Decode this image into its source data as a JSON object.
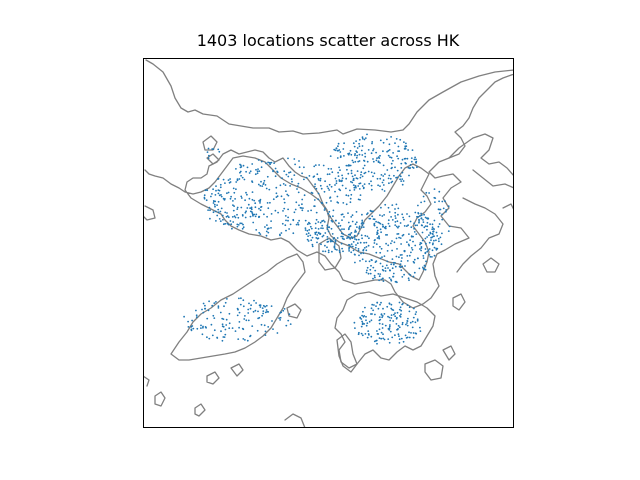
{
  "chart": {
    "title": "1403 locations scatter across HK",
    "point_color": "#1f77b4",
    "coastline_color": "#808080",
    "frame_color": "#000000",
    "background_color": "#ffffff"
  },
  "chart_data": {
    "type": "scatter",
    "title": "1403 locations scatter across HK",
    "point_count": 1403,
    "region": "Hong Kong",
    "xlabel": "",
    "ylabel": "",
    "legend": "none",
    "grid": false
  }
}
